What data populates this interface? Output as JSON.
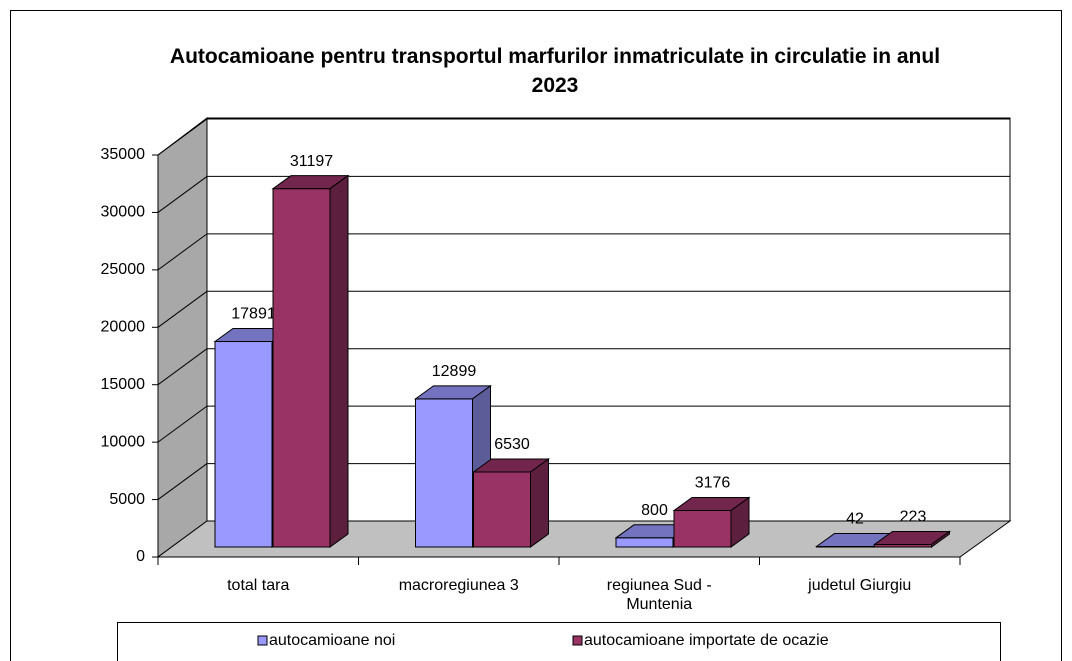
{
  "chart_data": {
    "type": "bar",
    "title": "Autocamioane pentru transportul marfurilor inmatriculate in circulatie in anul 2023",
    "categories": [
      "total tara",
      "macroregiunea 3",
      "regiunea Sud - Muntenia",
      "judetul Giurgiu"
    ],
    "series": [
      {
        "name": "autocamioane noi",
        "color": "#9999ff",
        "values": [
          17891,
          12899,
          800,
          42
        ]
      },
      {
        "name": "autocamioane importate de ocazie",
        "color": "#993366",
        "values": [
          31197,
          6530,
          3176,
          223
        ]
      }
    ],
    "ylim": [
      0,
      35000
    ],
    "yticks": [
      0,
      5000,
      10000,
      15000,
      20000,
      25000,
      30000,
      35000
    ],
    "grid": true,
    "legend": "bottom"
  }
}
